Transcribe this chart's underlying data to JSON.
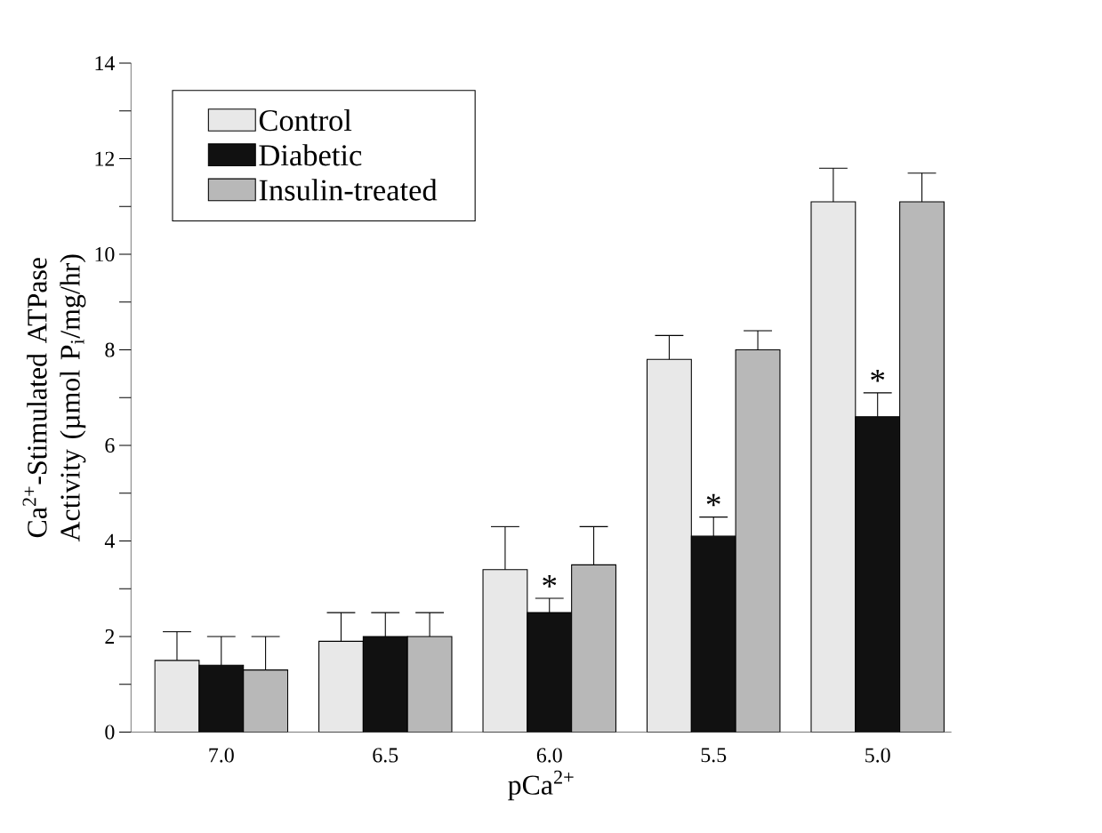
{
  "chart_data": {
    "type": "bar",
    "xlabel": "pCa$^{2+}$",
    "ylabel": "Ca$^{2+}$-Stimulated ATPase Activity (µmol P$_{i}$/mg/hr)",
    "categories": [
      "7.0",
      "6.5",
      "6.0",
      "5.5",
      "5.0"
    ],
    "series": [
      {
        "name": "Control",
        "color": "#e8e8e8",
        "values": [
          1.5,
          1.9,
          3.4,
          7.8,
          11.1
        ],
        "errors": [
          0.6,
          0.6,
          0.9,
          0.5,
          0.7
        ]
      },
      {
        "name": "Diabetic",
        "color": "#111111",
        "values": [
          1.4,
          2.0,
          2.5,
          4.1,
          6.6
        ],
        "errors": [
          0.6,
          0.5,
          0.3,
          0.4,
          0.5
        ]
      },
      {
        "name": "Insulin-treated",
        "color": "#b8b8b8",
        "values": [
          1.3,
          2.0,
          3.5,
          8.0,
          11.1
        ],
        "errors": [
          0.7,
          0.5,
          0.8,
          0.4,
          0.6
        ]
      }
    ],
    "ylim": [
      0,
      14
    ],
    "yticks": [
      0,
      {
        "value": 1,
        "label": null
      },
      2,
      {
        "value": 3,
        "label": null
      },
      4,
      {
        "value": 5,
        "label": null
      },
      6,
      {
        "value": 7,
        "label": null
      },
      8,
      {
        "value": 9,
        "label": null
      },
      10,
      {
        "value": 11,
        "label": null
      },
      12,
      {
        "value": 13,
        "label": null
      },
      14
    ],
    "annotations": [
      {
        "text": "*",
        "x": "6.0",
        "y": 2.8
      },
      {
        "text": "*",
        "x": "5.5",
        "y": 4.5
      },
      {
        "text": "*",
        "x": "5.0",
        "y": 7.1
      }
    ],
    "legend": "top left",
    "grid": false
  }
}
